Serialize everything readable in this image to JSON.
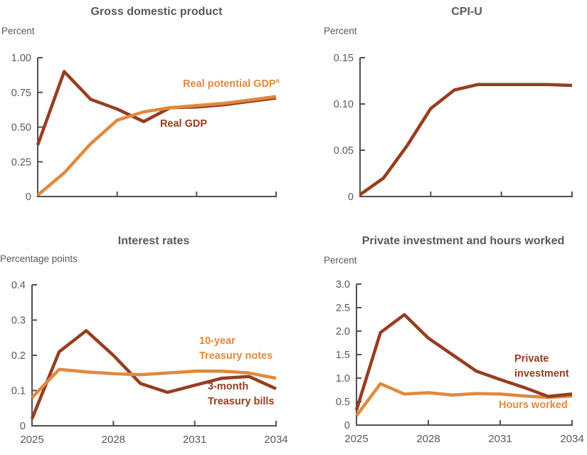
{
  "palette": {
    "brown": "#963d1f",
    "orange": "#e1893f",
    "text_gray": "#58595b",
    "axis_gray": "#4f5052"
  },
  "chart_data": [
    {
      "id": "gdp",
      "type": "line",
      "title": "Gross domestic product",
      "unit_label": "Percent",
      "ylim": [
        0,
        1.0
      ],
      "yticks": [
        {
          "v": 1.0,
          "label": "1.00"
        },
        {
          "v": 0.75,
          "label": "0.75"
        },
        {
          "v": 0.5,
          "label": "0.50"
        },
        {
          "v": 0.25,
          "label": "0.25"
        },
        {
          "v": 0,
          "label": "0"
        }
      ],
      "x": [
        2025,
        2026,
        2027,
        2028,
        2029,
        2030,
        2031,
        2032,
        2033,
        2034
      ],
      "xtick_years": [
        2028,
        2031,
        2034
      ],
      "xtick_labels": [],
      "series": [
        {
          "name": "Real GDP",
          "color": "brown",
          "values": [
            0.37,
            0.9,
            0.7,
            0.63,
            0.54,
            0.64,
            0.645,
            0.66,
            0.685,
            0.71
          ]
        },
        {
          "name": "Real potential GDP",
          "color": "orange",
          "values": [
            0.01,
            0.17,
            0.38,
            0.55,
            0.61,
            0.64,
            0.655,
            0.67,
            0.695,
            0.72
          ]
        }
      ],
      "annotations": [
        {
          "lines": [
            "Real potential GDP"
          ],
          "sup": "a",
          "color": "orange"
        },
        {
          "lines": [
            "Real GDP"
          ],
          "color": "brown"
        }
      ]
    },
    {
      "id": "cpi",
      "type": "line",
      "title": "CPI-U",
      "unit_label": "Percent",
      "ylim": [
        0,
        0.15
      ],
      "yticks": [
        {
          "v": 0.15,
          "label": "0.15"
        },
        {
          "v": 0.1,
          "label": "0.10"
        },
        {
          "v": 0.05,
          "label": "0.05"
        },
        {
          "v": 0,
          "label": "0"
        }
      ],
      "x": [
        2025,
        2026,
        2027,
        2028,
        2029,
        2030,
        2031,
        2032,
        2033,
        2034
      ],
      "xtick_years": [
        2028,
        2031,
        2034
      ],
      "xtick_labels": [],
      "series": [
        {
          "name": "CPI-U",
          "color": "brown",
          "values": [
            0.002,
            0.02,
            0.055,
            0.095,
            0.115,
            0.121,
            0.121,
            0.121,
            0.121,
            0.12
          ]
        }
      ],
      "annotations": []
    },
    {
      "id": "rates",
      "type": "line",
      "title": "Interest rates",
      "unit_label": "Percentage points",
      "ylim": [
        0,
        0.4
      ],
      "yticks": [
        {
          "v": 0.4,
          "label": "0.4"
        },
        {
          "v": 0.3,
          "label": "0.3"
        },
        {
          "v": 0.2,
          "label": "0.2"
        },
        {
          "v": 0.1,
          "label": "0.1"
        },
        {
          "v": 0,
          "label": "0"
        }
      ],
      "x": [
        2025,
        2026,
        2027,
        2028,
        2029,
        2030,
        2031,
        2032,
        2033,
        2034
      ],
      "xtick_years": [
        2028,
        2031,
        2034
      ],
      "xtick_labels": [
        {
          "year": 2025,
          "label": "2025"
        },
        {
          "year": 2028,
          "label": "2028"
        },
        {
          "year": 2031,
          "label": "2031"
        },
        {
          "year": 2034,
          "label": "2034"
        }
      ],
      "series": [
        {
          "name": "3-month Treasury bills",
          "color": "brown",
          "values": [
            0.02,
            0.21,
            0.27,
            0.2,
            0.12,
            0.095,
            0.115,
            0.135,
            0.14,
            0.105
          ]
        },
        {
          "name": "10-year Treasury notes",
          "color": "orange",
          "values": [
            0.08,
            0.16,
            0.153,
            0.148,
            0.145,
            0.15,
            0.155,
            0.155,
            0.15,
            0.135
          ]
        }
      ],
      "annotations": [
        {
          "lines": [
            "10-year",
            "Treasury notes"
          ],
          "color": "orange"
        },
        {
          "lines": [
            "3-month",
            "Treasury bills"
          ],
          "color": "brown"
        }
      ]
    },
    {
      "id": "inv",
      "type": "line",
      "title": "Private investment and hours worked",
      "unit_label": "Percent",
      "ylim": [
        0,
        3.0
      ],
      "yticks": [
        {
          "v": 3.0,
          "label": "3.0"
        },
        {
          "v": 2.5,
          "label": "2.5"
        },
        {
          "v": 2.0,
          "label": "2.0"
        },
        {
          "v": 1.5,
          "label": "1.5"
        },
        {
          "v": 1.0,
          "label": "1.0"
        },
        {
          "v": 0.5,
          "label": "0.5"
        },
        {
          "v": 0,
          "label": "0"
        }
      ],
      "x": [
        2025,
        2026,
        2027,
        2028,
        2029,
        2030,
        2031,
        2032,
        2033,
        2034
      ],
      "xtick_years": [
        2028,
        2031,
        2034
      ],
      "xtick_labels": [
        {
          "year": 2025,
          "label": "2025"
        },
        {
          "year": 2028,
          "label": "2028"
        },
        {
          "year": 2031,
          "label": "2031"
        },
        {
          "year": 2034,
          "label": "2034"
        }
      ],
      "series": [
        {
          "name": "Hours worked",
          "color": "orange",
          "values": [
            0.2,
            0.88,
            0.66,
            0.69,
            0.64,
            0.67,
            0.66,
            0.62,
            0.59,
            0.62
          ]
        },
        {
          "name": "Private investment",
          "color": "brown",
          "values": [
            0.32,
            1.97,
            2.35,
            1.85,
            1.5,
            1.15,
            0.97,
            0.8,
            0.61,
            0.66
          ]
        }
      ],
      "annotations": [
        {
          "lines": [
            "Private",
            "investment"
          ],
          "color": "brown"
        },
        {
          "lines": [
            "Hours worked"
          ],
          "color": "orange"
        }
      ]
    }
  ]
}
